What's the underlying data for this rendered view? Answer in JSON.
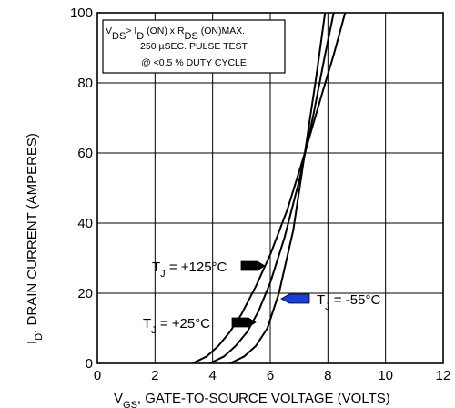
{
  "chart_data": {
    "type": "line",
    "title": "",
    "xlabel": {
      "main": "V",
      "sub": "GS",
      "rest": ", GATE-TO-SOURCE VOLTAGE (VOLTS)"
    },
    "ylabel": {
      "main": "I",
      "sub": "D",
      "rest": ", DRAIN CURRENT (AMPERES)"
    },
    "xlim": [
      0,
      12
    ],
    "ylim": [
      0,
      100
    ],
    "x_ticks": [
      0,
      2,
      4,
      6,
      8,
      10,
      12
    ],
    "y_ticks": [
      0,
      20,
      40,
      60,
      80,
      100
    ],
    "grid": true,
    "test_conditions": [
      {
        "parts": [
          {
            "t": "V",
            "s": false
          },
          {
            "t": "DS",
            "s": true
          },
          {
            "t": "> I",
            "s": false
          },
          {
            "t": "D",
            "s": true
          },
          {
            "t": " (ON)  x  R",
            "s": false
          },
          {
            "t": "DS",
            "s": true
          },
          {
            "t": " (ON)MAX.",
            "s": false
          }
        ]
      },
      {
        "parts": [
          {
            "t": "250 µSEC.  PULSE  TEST",
            "s": false
          }
        ]
      },
      {
        "parts": [
          {
            "t": "@  <0.5 % DUTY  CYCLE",
            "s": false
          }
        ]
      }
    ],
    "series": [
      {
        "name": "T_J = +125°C",
        "x": [
          3.3,
          3.8,
          4.2,
          4.6,
          5.0,
          5.5,
          6.0,
          6.6,
          7.2,
          7.8,
          8.2,
          8.6
        ],
        "y": [
          0,
          2,
          5,
          9,
          14,
          22,
          31,
          44,
          60,
          77,
          88,
          100
        ]
      },
      {
        "name": "T_J = +25°C",
        "x": [
          3.9,
          4.4,
          4.8,
          5.2,
          5.6,
          6.0,
          6.5,
          7.0,
          7.5,
          7.9,
          8.2
        ],
        "y": [
          0,
          2,
          5,
          9,
          15,
          23,
          36,
          52,
          71,
          88,
          100
        ]
      },
      {
        "name": "T_J = -55°C",
        "x": [
          4.6,
          5.1,
          5.5,
          5.9,
          6.3,
          6.8,
          7.2,
          7.6,
          7.9
        ],
        "y": [
          0,
          2,
          5,
          10,
          20,
          38,
          60,
          82,
          100
        ]
      }
    ],
    "annotations": [
      {
        "main": "T",
        "sub": "J",
        "rest": " = +125°C",
        "color": "#000000",
        "arrow_dir": "right"
      },
      {
        "main": "T",
        "sub": "J",
        "rest": " = +25°C",
        "color": "#000000",
        "arrow_dir": "right"
      },
      {
        "main": "T",
        "sub": "J",
        "rest": " = -55°C",
        "color": "#1a3fd6",
        "arrow_dir": "left"
      }
    ]
  }
}
